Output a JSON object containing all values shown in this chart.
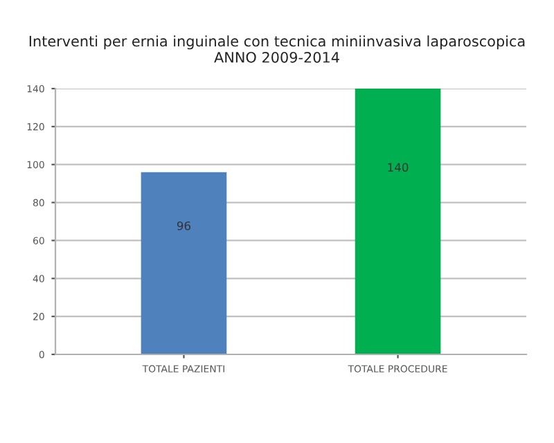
{
  "chart_data": {
    "type": "bar",
    "title": "Interventi per ernia inguinale con tecnica miniinvasiva laparoscopica\nANNO 2009-2014",
    "categories": [
      "TOTALE PAZIENTI",
      "TOTALE PROCEDURE"
    ],
    "values": [
      96,
      140
    ],
    "colors": [
      "#4f81bd",
      "#00b050"
    ],
    "ylim": [
      0,
      140
    ],
    "yticks": [
      0,
      20,
      40,
      60,
      80,
      100,
      120,
      140
    ],
    "grid": "y",
    "data_labels": true
  }
}
